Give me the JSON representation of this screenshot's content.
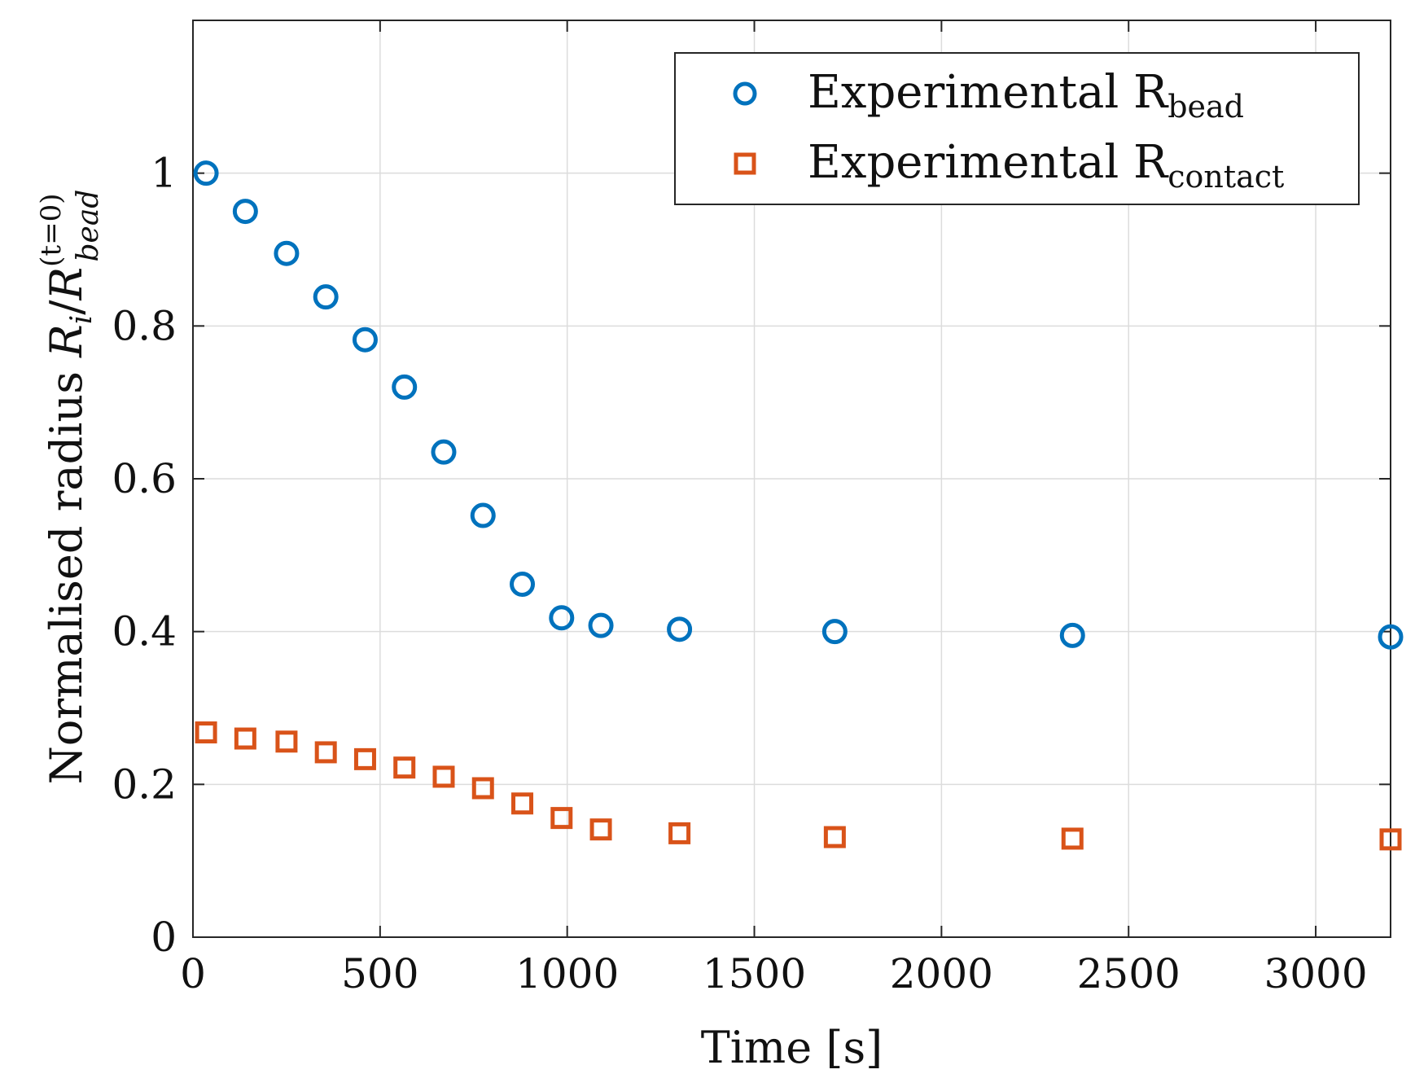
{
  "chart_data": {
    "type": "scatter",
    "xlabel": "Time [s]",
    "ylabel": {
      "main": "Normalised radius ",
      "var": "R",
      "var_sub": "i",
      "slash": "/",
      "den": "R",
      "den_sub": "bead",
      "den_sup": "(t=0)"
    },
    "xlim": [
      0,
      3200
    ],
    "ylim": [
      0,
      1.2
    ],
    "xticks": [
      0,
      500,
      1000,
      1500,
      2000,
      2500,
      3000
    ],
    "yticks": [
      0,
      0.2,
      0.4,
      0.6,
      0.8,
      1
    ],
    "grid": true,
    "legend_position": "top-right",
    "series": [
      {
        "name": "Experimental R",
        "name_sub": "bead",
        "marker": "circle",
        "color": "#0072BD",
        "x": [
          35,
          140,
          250,
          355,
          460,
          565,
          670,
          775,
          880,
          985,
          1090,
          1300,
          1715,
          2350,
          3200
        ],
        "y": [
          1.0,
          0.95,
          0.895,
          0.838,
          0.782,
          0.72,
          0.635,
          0.552,
          0.462,
          0.418,
          0.408,
          0.403,
          0.4,
          0.395,
          0.393
        ]
      },
      {
        "name": "Experimental R",
        "name_sub": "contact",
        "marker": "square",
        "color": "#D95319",
        "x": [
          35,
          140,
          250,
          355,
          460,
          565,
          670,
          775,
          880,
          985,
          1090,
          1300,
          1715,
          2350,
          3200
        ],
        "y": [
          0.268,
          0.26,
          0.256,
          0.242,
          0.233,
          0.222,
          0.21,
          0.195,
          0.175,
          0.156,
          0.141,
          0.136,
          0.131,
          0.129,
          0.128
        ]
      }
    ]
  }
}
